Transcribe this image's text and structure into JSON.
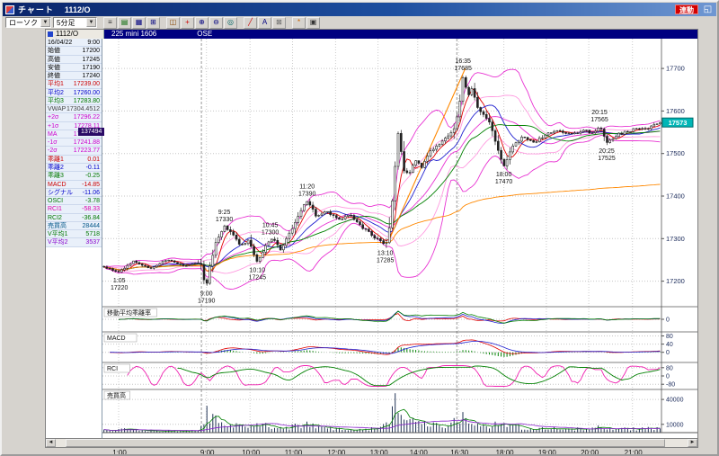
{
  "window": {
    "title": "チャート",
    "title_code": "1112/O",
    "linked_label": "連動",
    "icons": {
      "pin": "◱"
    }
  },
  "toolbar": {
    "chart_type": "ローソク",
    "interval": "5分足",
    "dropdown_glyph": "▼",
    "buttons": [
      {
        "name": "quote-list-icon",
        "glyph": "≡",
        "color": "#333333"
      },
      {
        "name": "price-board-icon",
        "glyph": "▤",
        "color": "#006600"
      },
      {
        "name": "mini-chart-icon",
        "glyph": "▦",
        "color": "#000080"
      },
      {
        "name": "multi-chart-icon",
        "glyph": "⊞",
        "color": "#000080"
      },
      {
        "name": "toolbar-separator",
        "glyph": "",
        "color": ""
      },
      {
        "name": "compare-chart-icon",
        "glyph": "◫",
        "color": "#884400"
      },
      {
        "name": "crosshair-icon",
        "glyph": "+",
        "color": "#cc0000"
      },
      {
        "name": "zoom-in-icon",
        "glyph": "⊕",
        "color": "#000080"
      },
      {
        "name": "zoom-out-icon",
        "glyph": "⊖",
        "color": "#000080"
      },
      {
        "name": "search-icon",
        "glyph": "◎",
        "color": "#006666"
      },
      {
        "name": "toolbar-separator",
        "glyph": "",
        "color": ""
      },
      {
        "name": "trendline-icon",
        "glyph": "╱",
        "color": "#cc0000"
      },
      {
        "name": "text-annotation-icon",
        "glyph": "A",
        "color": "#000080"
      },
      {
        "name": "eraser-icon",
        "glyph": "⊠",
        "color": "#666666"
      },
      {
        "name": "toolbar-separator",
        "glyph": "",
        "color": ""
      },
      {
        "name": "settings-icon",
        "glyph": "*",
        "color": "#cc6600"
      },
      {
        "name": "print-icon",
        "glyph": "▣",
        "color": "#333333"
      }
    ]
  },
  "instrument_bar": {
    "code": "1112/O",
    "name": "225 mini 1606",
    "exchange": "OSE"
  },
  "quote_panel": {
    "marker_tag": "137494",
    "rows": [
      {
        "label": "16/04/22",
        "value": "9:00",
        "color": "#000000"
      },
      {
        "label": "始値",
        "value": "17200",
        "color": "#000000"
      },
      {
        "label": "高値",
        "value": "17245",
        "color": "#000000"
      },
      {
        "label": "安値",
        "value": "17190",
        "color": "#000000"
      },
      {
        "label": "終値",
        "value": "17240",
        "color": "#000000"
      },
      {
        "label": "平均1",
        "value": "17239.00",
        "color": "#cc0000"
      },
      {
        "label": "平均2",
        "value": "17260.00",
        "color": "#0000cc"
      },
      {
        "label": "平均3",
        "value": "17283.80",
        "color": "#007700"
      },
      {
        "label": "VWAP",
        "value": "17304.4512",
        "color": "#444444"
      },
      {
        "label": "+2σ",
        "value": "17296.22",
        "color": "#cc00cc"
      },
      {
        "label": "+1σ",
        "value": "17278.11",
        "color": "#cc00cc"
      },
      {
        "label": "MA",
        "value": "17260.00",
        "color": "#cc00cc"
      },
      {
        "label": "-1σ",
        "value": "17241.88",
        "color": "#cc00cc"
      },
      {
        "label": "-2σ",
        "value": "17223.77",
        "color": "#cc00cc"
      },
      {
        "label": "乖離1",
        "value": "0.01",
        "color": "#cc0000"
      },
      {
        "label": "乖離2",
        "value": "-0.11",
        "color": "#0000cc"
      },
      {
        "label": "乖離3",
        "value": "-0.25",
        "color": "#007700"
      },
      {
        "label": "MACD",
        "value": "-14.85",
        "color": "#cc0000"
      },
      {
        "label": "シグナル",
        "value": "-11.06",
        "color": "#0000cc"
      },
      {
        "label": "OSCI",
        "value": "-3.78",
        "color": "#007700"
      },
      {
        "label": "RCI1",
        "value": "-58.33",
        "color": "#dd00aa"
      },
      {
        "label": "RCI2",
        "value": "-36.84",
        "color": "#007700"
      },
      {
        "label": "売買高",
        "value": "28444",
        "color": "#005588"
      },
      {
        "label": "V平均1",
        "value": "5718",
        "color": "#007700"
      },
      {
        "label": "V平均2",
        "value": "3537",
        "color": "#8800cc"
      }
    ]
  },
  "scrollbar": {
    "left_arrow": "◄",
    "right_arrow": "►"
  },
  "chart_data": {
    "type": "candlestick",
    "title": "225 mini 1606 5分足 ローソク",
    "last_price": 17573,
    "last_price_badge_color": "#00b6b6",
    "candle_up_fill": "#ffffff",
    "candle_down_fill": "#222222",
    "y_axis": {
      "min": 17140,
      "max": 17770,
      "ticks": [
        17700,
        17600,
        17500,
        17400,
        17300,
        17200
      ]
    },
    "time_ticks": [
      {
        "t": 0.029,
        "label": "1:00"
      },
      {
        "t": 0.186,
        "label": "9:00"
      },
      {
        "t": 0.264,
        "label": "10:00"
      },
      {
        "t": 0.34,
        "label": "11:00"
      },
      {
        "t": 0.417,
        "label": "12:00"
      },
      {
        "t": 0.493,
        "label": "13:00"
      },
      {
        "t": 0.564,
        "label": "14:00"
      },
      {
        "t": 0.637,
        "label": "16:30"
      },
      {
        "t": 0.718,
        "label": "18:00"
      },
      {
        "t": 0.794,
        "label": "19:00"
      },
      {
        "t": 0.87,
        "label": "20:00"
      },
      {
        "t": 0.948,
        "label": "21:00"
      }
    ],
    "session_breaks": [
      0.177,
      0.634
    ],
    "price_path": [
      [
        0.0,
        17235
      ],
      [
        0.029,
        17220
      ],
      [
        0.055,
        17246
      ],
      [
        0.085,
        17231
      ],
      [
        0.115,
        17250
      ],
      [
        0.148,
        17236
      ],
      [
        0.175,
        17246
      ],
      [
        0.18,
        17205
      ],
      [
        0.186,
        17190
      ],
      [
        0.2,
        17282
      ],
      [
        0.218,
        17330
      ],
      [
        0.233,
        17308
      ],
      [
        0.248,
        17282
      ],
      [
        0.262,
        17298
      ],
      [
        0.277,
        17245
      ],
      [
        0.292,
        17282
      ],
      [
        0.305,
        17300
      ],
      [
        0.32,
        17272
      ],
      [
        0.338,
        17322
      ],
      [
        0.352,
        17362
      ],
      [
        0.366,
        17390
      ],
      [
        0.382,
        17352
      ],
      [
        0.402,
        17366
      ],
      [
        0.422,
        17344
      ],
      [
        0.442,
        17356
      ],
      [
        0.462,
        17330
      ],
      [
        0.482,
        17308
      ],
      [
        0.506,
        17285
      ],
      [
        0.515,
        17332
      ],
      [
        0.522,
        17444
      ],
      [
        0.53,
        17560
      ],
      [
        0.538,
        17462
      ],
      [
        0.548,
        17450
      ],
      [
        0.56,
        17482
      ],
      [
        0.572,
        17468
      ],
      [
        0.585,
        17502
      ],
      [
        0.6,
        17520
      ],
      [
        0.615,
        17538
      ],
      [
        0.63,
        17558
      ],
      [
        0.637,
        17602
      ],
      [
        0.645,
        17685
      ],
      [
        0.653,
        17638
      ],
      [
        0.662,
        17652
      ],
      [
        0.674,
        17600
      ],
      [
        0.69,
        17580
      ],
      [
        0.706,
        17518
      ],
      [
        0.718,
        17470
      ],
      [
        0.733,
        17516
      ],
      [
        0.752,
        17540
      ],
      [
        0.772,
        17524
      ],
      [
        0.794,
        17546
      ],
      [
        0.815,
        17552
      ],
      [
        0.84,
        17544
      ],
      [
        0.862,
        17556
      ],
      [
        0.876,
        17548
      ],
      [
        0.889,
        17565
      ],
      [
        0.902,
        17525
      ],
      [
        0.925,
        17546
      ],
      [
        0.95,
        17556
      ],
      [
        0.975,
        17560
      ],
      [
        1.0,
        17573
      ]
    ],
    "volume_path": [
      [
        0.0,
        2500
      ],
      [
        0.03,
        4000
      ],
      [
        0.1,
        2000
      ],
      [
        0.17,
        2500
      ],
      [
        0.178,
        8000
      ],
      [
        0.186,
        26000
      ],
      [
        0.2,
        15000
      ],
      [
        0.22,
        12000
      ],
      [
        0.25,
        7000
      ],
      [
        0.28,
        9000
      ],
      [
        0.32,
        6000
      ],
      [
        0.366,
        9000
      ],
      [
        0.4,
        5000
      ],
      [
        0.45,
        4500
      ],
      [
        0.49,
        5000
      ],
      [
        0.506,
        9000
      ],
      [
        0.515,
        20000
      ],
      [
        0.525,
        42000
      ],
      [
        0.535,
        30000
      ],
      [
        0.55,
        15000
      ],
      [
        0.58,
        9000
      ],
      [
        0.61,
        7000
      ],
      [
        0.637,
        14000
      ],
      [
        0.645,
        18000
      ],
      [
        0.66,
        12000
      ],
      [
        0.69,
        8000
      ],
      [
        0.718,
        10000
      ],
      [
        0.75,
        6000
      ],
      [
        0.8,
        5000
      ],
      [
        0.85,
        4500
      ],
      [
        0.889,
        6000
      ],
      [
        0.92,
        4000
      ],
      [
        0.96,
        4500
      ],
      [
        1.0,
        5500
      ]
    ],
    "annotations": [
      {
        "t": 0.03,
        "price": 17220,
        "time": "1:05",
        "value": "17220",
        "dir": "low"
      },
      {
        "t": 0.186,
        "price": 17190,
        "time": "9:00",
        "value": "17190",
        "dir": "low"
      },
      {
        "t": 0.218,
        "price": 17330,
        "time": "9:25",
        "value": "17330",
        "dir": "high"
      },
      {
        "t": 0.3,
        "price": 17300,
        "time": "10:45",
        "value": "17300",
        "dir": "high"
      },
      {
        "t": 0.277,
        "price": 17245,
        "time": "10:10",
        "value": "17245",
        "dir": "low"
      },
      {
        "t": 0.366,
        "price": 17390,
        "time": "11:20",
        "value": "17390",
        "dir": "high"
      },
      {
        "t": 0.506,
        "price": 17285,
        "time": "13:10",
        "value": "17285",
        "dir": "low"
      },
      {
        "t": 0.645,
        "price": 17685,
        "time": "16:35",
        "value": "17685",
        "dir": "high"
      },
      {
        "t": 0.718,
        "price": 17470,
        "time": "18:00",
        "value": "17470",
        "dir": "low"
      },
      {
        "t": 0.889,
        "price": 17565,
        "time": "20:15",
        "value": "17565",
        "dir": "high"
      },
      {
        "t": 0.902,
        "price": 17525,
        "time": "20:25",
        "value": "17525",
        "dir": "low"
      }
    ],
    "overlays": {
      "band_color": "#e832d2",
      "band_inner_color": "#ff9ae0",
      "ma_colors": [
        "#e00000",
        "#2020d0",
        "#008000"
      ],
      "vwap_color": "#ff8800",
      "trendline": {
        "from": [
          0.512,
          17295
        ],
        "to": [
          0.649,
          17700
        ],
        "color": "#ff8800"
      }
    },
    "indicator_colors": {
      "deviation": [
        "#e00000",
        "#2020d0",
        "#008000"
      ],
      "macd_line": "#e00000",
      "macd_signal": "#2020d0",
      "macd_osci": "#008000",
      "rci1": "#f020b0",
      "rci2": "#008000",
      "volume_bar": "#223355",
      "v_ma1": "#008000",
      "v_ma2": "#8820cc"
    },
    "panels": [
      {
        "name": "移動平均乖離率",
        "range": [
          -1.8,
          1.8
        ],
        "ticks": [
          {
            "v": 0,
            "label": "0"
          }
        ]
      },
      {
        "name": "MACD",
        "range": [
          -50,
          100
        ],
        "ticks": [
          {
            "v": 80,
            "label": "80"
          },
          {
            "v": 40,
            "label": "40"
          },
          {
            "v": 0,
            "label": "0"
          }
        ]
      },
      {
        "name": "RCI",
        "range": [
          -130,
          130
        ],
        "ticks": [
          {
            "v": 80,
            "label": "80"
          },
          {
            "v": 0,
            "label": "0"
          },
          {
            "v": -80,
            "label": "-80"
          }
        ]
      },
      {
        "name": "売買高",
        "range": [
          0,
          52000
        ],
        "ticks": [
          {
            "v": 40000,
            "label": "40000"
          },
          {
            "v": 10000,
            "label": "10000"
          }
        ]
      }
    ]
  }
}
